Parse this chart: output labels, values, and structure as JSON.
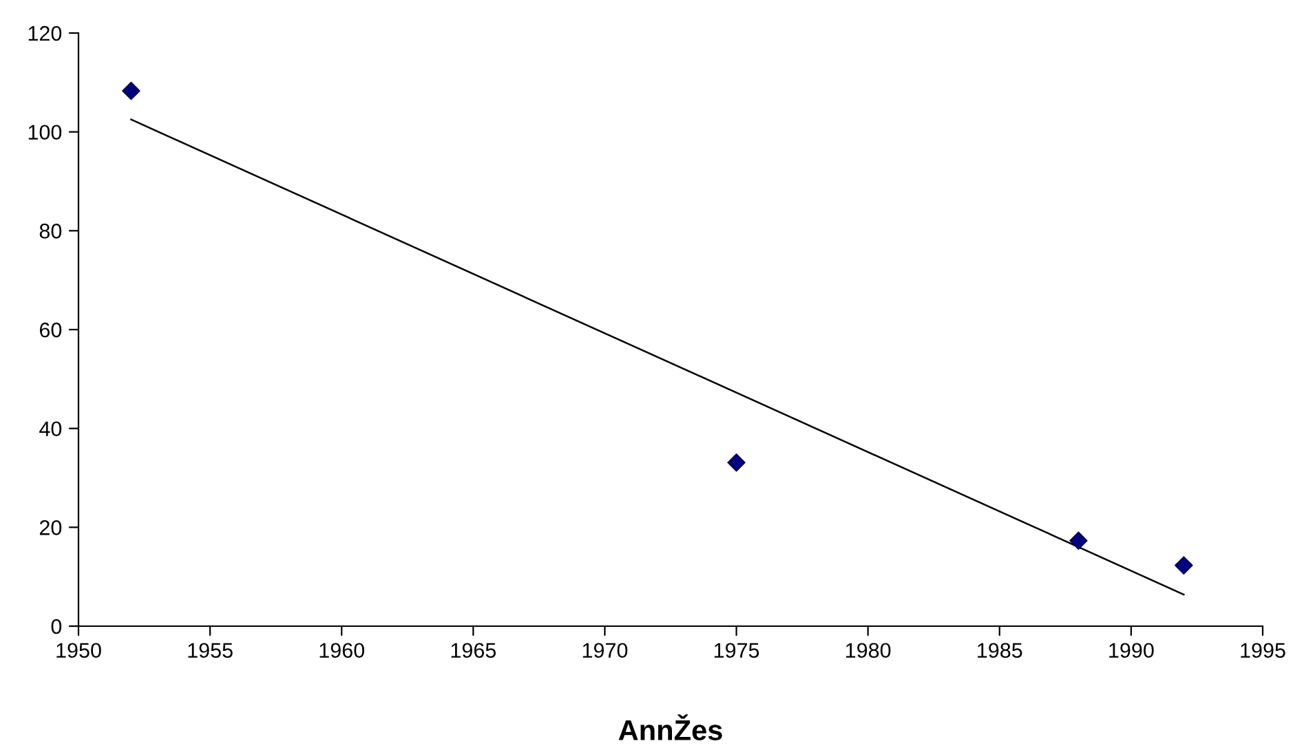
{
  "chart_data": {
    "type": "scatter",
    "xlabel": "AnnŽes",
    "xlim": [
      1950,
      1995
    ],
    "xticks": [
      1950,
      1955,
      1960,
      1965,
      1970,
      1975,
      1980,
      1985,
      1990,
      1995
    ],
    "ylim": [
      0,
      120
    ],
    "yticks": [
      0,
      20,
      40,
      60,
      80,
      100,
      120
    ],
    "grid": false,
    "legend": false,
    "series": [
      {
        "type": "scatter",
        "color": "#000080",
        "marker": "diamond",
        "x": [
          1952,
          1975,
          1988,
          1992
        ],
        "values": [
          108.3,
          33.1,
          17.3,
          12.3
        ]
      },
      {
        "type": "line",
        "color": "#000000",
        "marker": "none",
        "line_style": "solid",
        "x": [
          1952,
          1992
        ],
        "values": [
          102.5,
          6.4
        ]
      }
    ]
  }
}
